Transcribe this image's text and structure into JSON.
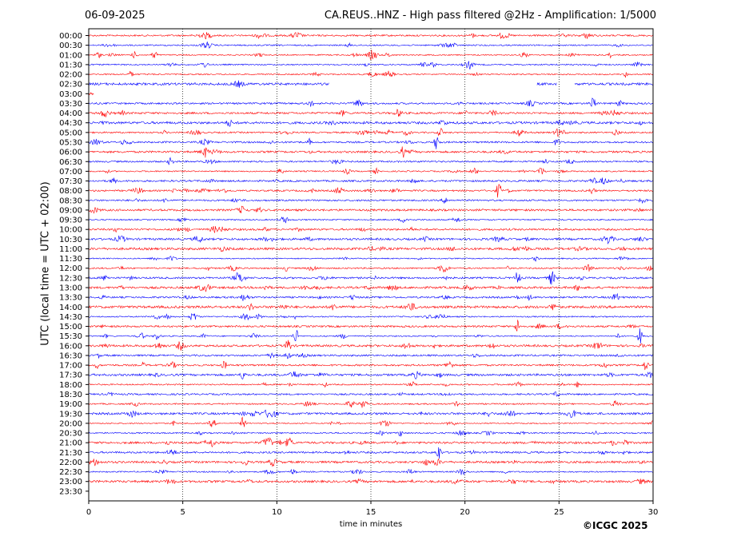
{
  "header": {
    "date": "06-09-2025",
    "title": "CA.REUS..HNZ - High pass filtered @2Hz - Amplification: 1/5000"
  },
  "credit": "©ICGC 2025",
  "chart_data": {
    "type": "line",
    "title": "CA.REUS..HNZ - High pass filtered @2Hz - Amplification: 1/5000",
    "xlabel": "time in minutes",
    "ylabel": "UTC (local time = UTC + 02:00)",
    "xlim": [
      0,
      30
    ],
    "xticks": [
      0,
      5,
      10,
      15,
      20,
      25,
      30
    ],
    "vertical_gridlines": [
      5,
      10,
      15,
      20,
      25
    ],
    "grid": "dotted vertical",
    "row_labels": [
      "00:00",
      "00:30",
      "01:00",
      "01:30",
      "02:00",
      "02:30",
      "03:00",
      "03:30",
      "04:00",
      "04:30",
      "05:00",
      "05:30",
      "06:00",
      "06:30",
      "07:00",
      "07:30",
      "08:00",
      "08:30",
      "09:00",
      "09:30",
      "10:00",
      "10:30",
      "11:00",
      "11:30",
      "12:00",
      "12:30",
      "13:00",
      "13:30",
      "14:00",
      "14:30",
      "15:00",
      "15:30",
      "16:00",
      "16:30",
      "17:00",
      "17:30",
      "18:00",
      "18:30",
      "19:00",
      "19:30",
      "20:00",
      "20:30",
      "21:00",
      "21:30",
      "22:00",
      "22:30",
      "23:00",
      "23:30"
    ],
    "trace_colors": [
      "#ff0000",
      "#0000ff"
    ],
    "data_gaps": [
      {
        "row": "02:30",
        "from_min": 12.8,
        "to_min": 23.8
      },
      {
        "row": "02:30",
        "from_min": 24.9,
        "to_min": 25.8
      },
      {
        "row": "03:00",
        "from_min": 0.3,
        "to_min": 30
      },
      {
        "row": "23:30",
        "from_min": 0,
        "to_min": 30
      }
    ],
    "notable_events": [
      {
        "row": "08:00",
        "minute": 21.8,
        "amplitude": 1.0
      },
      {
        "row": "03:30",
        "minute": 26.8,
        "amplitude": 0.8
      },
      {
        "row": "15:30",
        "minute": 11.0,
        "amplitude": 0.9
      },
      {
        "row": "15:30",
        "minute": 29.3,
        "amplitude": 0.9
      },
      {
        "row": "16:00",
        "minute": 10.6,
        "amplitude": 0.9
      },
      {
        "row": "15:00",
        "minute": 22.8,
        "amplitude": 0.8
      },
      {
        "row": "12:30",
        "minute": 22.8,
        "amplitude": 0.9
      },
      {
        "row": "12:30",
        "minute": 24.6,
        "amplitude": 0.6
      },
      {
        "row": "05:00",
        "minute": 24.9,
        "amplitude": 0.8
      },
      {
        "row": "05:30",
        "minute": 18.5,
        "amplitude": 0.9
      },
      {
        "row": "05:00",
        "minute": 18.7,
        "amplitude": 0.6
      },
      {
        "row": "06:00",
        "minute": 16.7,
        "amplitude": 0.6
      },
      {
        "row": "06:00",
        "minute": 6.2,
        "amplitude": 0.5
      },
      {
        "row": "07:00",
        "minute": 10.2,
        "amplitude": 0.5
      },
      {
        "row": "07:30",
        "minute": 17.3,
        "amplitude": 0.6
      },
      {
        "row": "14:00",
        "minute": 8.6,
        "amplitude": 0.4
      },
      {
        "row": "14:30",
        "minute": 4.2,
        "amplitude": 0.5
      },
      {
        "row": "14:30",
        "minute": 5.5,
        "amplitude": 0.4
      },
      {
        "row": "17:00",
        "minute": 7.2,
        "amplitude": 0.5
      },
      {
        "row": "17:00",
        "minute": 29.6,
        "amplitude": 0.6
      },
      {
        "row": "17:30",
        "minute": 8.2,
        "amplitude": 0.5
      },
      {
        "row": "17:30",
        "minute": 29.8,
        "amplitude": 0.5
      },
      {
        "row": "20:00",
        "minute": 8.2,
        "amplitude": 0.7
      },
      {
        "row": "20:00",
        "minute": 6.5,
        "amplitude": 0.4
      },
      {
        "row": "21:00",
        "minute": 6.6,
        "amplitude": 0.6
      },
      {
        "row": "21:00",
        "minute": 10.6,
        "amplitude": 0.6
      },
      {
        "row": "21:30",
        "minute": 18.6,
        "amplitude": 0.9
      },
      {
        "row": "22:00",
        "minute": 8.3,
        "amplitude": 0.4
      },
      {
        "row": "12:00",
        "minute": 29.8,
        "amplitude": 0.5
      },
      {
        "row": "01:00",
        "minute": 3.5,
        "amplitude": 0.6
      },
      {
        "row": "19:00",
        "minute": 19.5,
        "amplitude": 0.4
      },
      {
        "row": "16:30",
        "minute": 10.6,
        "amplitude": 0.5
      }
    ]
  }
}
